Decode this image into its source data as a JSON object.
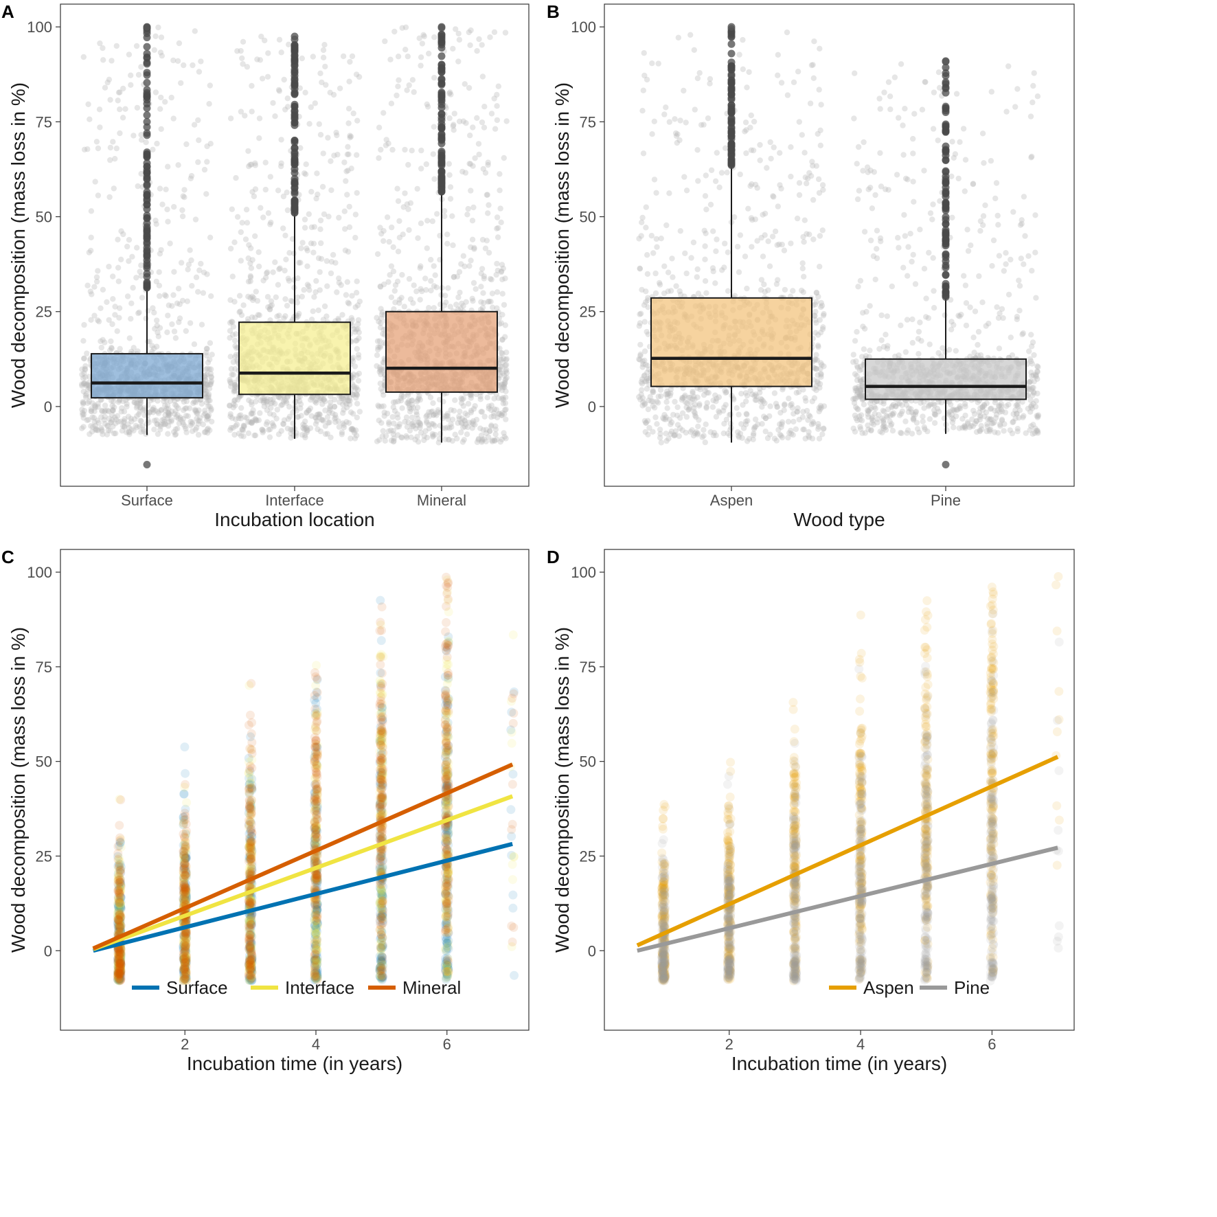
{
  "chart_data": [
    {
      "panel": "A",
      "type": "box",
      "xlabel": "Incubation location",
      "ylabel": "Wood decomposition (mass loss in %)",
      "ylim": [
        -21,
        106
      ],
      "yticks": [
        0,
        25,
        50,
        75,
        100
      ],
      "categories": [
        "Surface",
        "Interface",
        "Mineral"
      ],
      "boxes": [
        {
          "name": "Surface",
          "q1": 2.3,
          "median": 6.2,
          "q3": 13.9,
          "whisker_low": -7.5,
          "whisker_high": 31.3,
          "min": -15.3,
          "max": 100,
          "color": "#7aa6d1"
        },
        {
          "name": "Interface",
          "q1": 3.2,
          "median": 8.8,
          "q3": 22.2,
          "whisker_low": -8.5,
          "whisker_high": 51.0,
          "min": -8.5,
          "max": 97.5,
          "color": "#f5ef8f"
        },
        {
          "name": "Mineral",
          "q1": 3.8,
          "median": 10.1,
          "q3": 25.0,
          "whisker_low": -9.5,
          "whisker_high": 56.4,
          "min": -9.5,
          "max": 100,
          "color": "#e4a074"
        }
      ]
    },
    {
      "panel": "B",
      "type": "box",
      "xlabel": "Wood type",
      "ylabel": "Wood decomposition (mass loss in %)",
      "ylim": [
        -21,
        106
      ],
      "yticks": [
        0,
        25,
        50,
        75,
        100
      ],
      "categories": [
        "Aspen",
        "Pine"
      ],
      "boxes": [
        {
          "name": "Aspen",
          "q1": 5.3,
          "median": 12.7,
          "q3": 28.6,
          "whisker_low": -9.5,
          "whisker_high": 63.5,
          "min": -9.5,
          "max": 100,
          "color": "#f2c27a"
        },
        {
          "name": "Pine",
          "q1": 1.9,
          "median": 5.3,
          "q3": 12.5,
          "whisker_low": -7.2,
          "whisker_high": 28.6,
          "min": -15.3,
          "max": 91,
          "color": "#c7c7c7"
        }
      ]
    },
    {
      "panel": "C",
      "type": "scatter",
      "xlabel": "Incubation time (in years)",
      "ylabel": "Wood decomposition (mass loss in %)",
      "xlim": [
        0.1,
        7.25
      ],
      "ylim": [
        -21,
        106
      ],
      "xticks": [
        2,
        4,
        6
      ],
      "yticks": [
        0,
        25,
        50,
        75,
        100
      ],
      "x_values": [
        1,
        2,
        3,
        4,
        5,
        6,
        7
      ],
      "series": [
        {
          "name": "Surface",
          "color": "#0072b2",
          "fit": [
            [
              0.6,
              0.0
            ],
            [
              7,
              28.2
            ]
          ]
        },
        {
          "name": "Interface",
          "color": "#f0e442",
          "fit": [
            [
              0.6,
              0.4
            ],
            [
              7,
              40.8
            ]
          ]
        },
        {
          "name": "Mineral",
          "color": "#d55e00",
          "fit": [
            [
              0.6,
              0.6
            ],
            [
              7,
              49.2
            ]
          ]
        }
      ]
    },
    {
      "panel": "D",
      "type": "scatter",
      "xlabel": "Incubation time (in years)",
      "ylabel": "Wood decomposition (mass loss in %)",
      "xlim": [
        0.1,
        7.25
      ],
      "ylim": [
        -21,
        106
      ],
      "xticks": [
        2,
        4,
        6
      ],
      "yticks": [
        0,
        25,
        50,
        75,
        100
      ],
      "x_values": [
        1,
        2,
        3,
        4,
        5,
        6,
        7
      ],
      "series": [
        {
          "name": "Aspen",
          "color": "#e69f00",
          "fit": [
            [
              0.6,
              1.4
            ],
            [
              7,
              51.2
            ]
          ]
        },
        {
          "name": "Pine",
          "color": "#999999",
          "fit": [
            [
              0.6,
              0.0
            ],
            [
              7,
              27.2
            ]
          ]
        }
      ]
    }
  ]
}
